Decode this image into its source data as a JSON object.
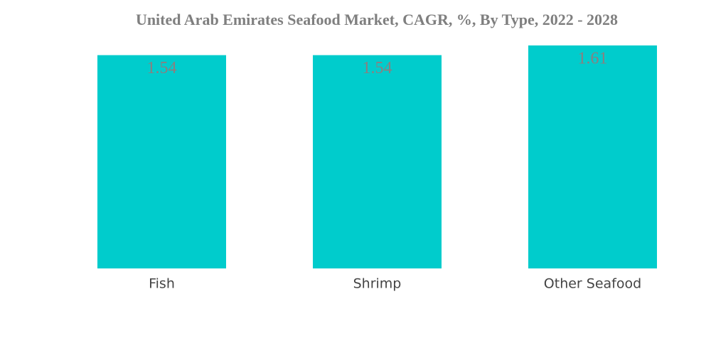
{
  "chart_data": {
    "type": "bar",
    "title": "United Arab Emirates Seafood Market, CAGR, %, By Type, 2022 - 2028",
    "categories": [
      "Fish",
      "Shrimp",
      "Other Seafood"
    ],
    "values": [
      1.54,
      1.54,
      1.61
    ],
    "color": "#00cccc"
  }
}
